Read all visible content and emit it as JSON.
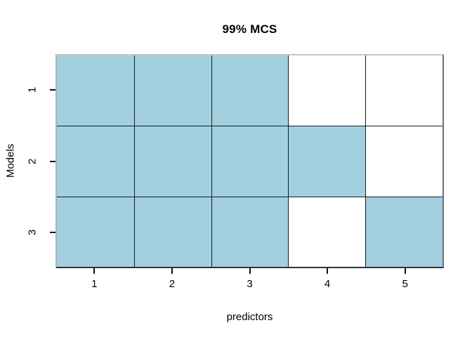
{
  "chart_data": {
    "type": "heatmap",
    "title": "99% MCS",
    "xlabel": "predictors",
    "ylabel": "Models",
    "x_ticks": [
      "1",
      "2",
      "3",
      "4",
      "5"
    ],
    "y_ticks": [
      "1",
      "2",
      "3"
    ],
    "matrix": [
      [
        1,
        1,
        1,
        0,
        0
      ],
      [
        1,
        1,
        1,
        1,
        0
      ],
      [
        1,
        1,
        1,
        0,
        1
      ]
    ],
    "colors": {
      "filled": "#a3d0e0",
      "empty": "#ffffff"
    },
    "legend": null,
    "grid_lines": "on",
    "x_range": [
      0.5,
      5.5
    ],
    "y_range": [
      0.5,
      3.5
    ]
  }
}
